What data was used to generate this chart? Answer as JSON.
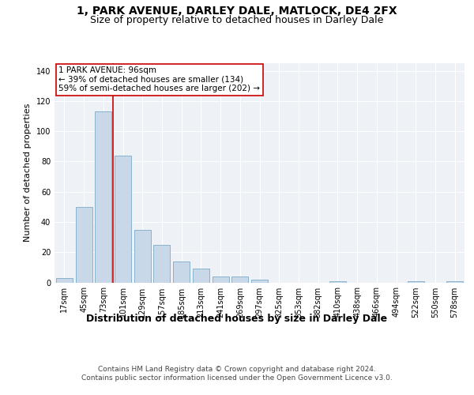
{
  "title_line1": "1, PARK AVENUE, DARLEY DALE, MATLOCK, DE4 2FX",
  "title_line2": "Size of property relative to detached houses in Darley Dale",
  "xlabel": "Distribution of detached houses by size in Darley Dale",
  "ylabel": "Number of detached properties",
  "bar_color": "#c8d8e8",
  "bar_edge_color": "#7aaac8",
  "categories": [
    "17sqm",
    "45sqm",
    "73sqm",
    "101sqm",
    "129sqm",
    "157sqm",
    "185sqm",
    "213sqm",
    "241sqm",
    "269sqm",
    "297sqm",
    "325sqm",
    "353sqm",
    "382sqm",
    "410sqm",
    "438sqm",
    "466sqm",
    "494sqm",
    "522sqm",
    "550sqm",
    "578sqm"
  ],
  "values": [
    3,
    50,
    113,
    84,
    35,
    25,
    14,
    9,
    4,
    4,
    2,
    0,
    0,
    0,
    1,
    0,
    0,
    0,
    1,
    0,
    1
  ],
  "ylim": [
    0,
    145
  ],
  "yticks": [
    0,
    20,
    40,
    60,
    80,
    100,
    120,
    140
  ],
  "annotation_text": "1 PARK AVENUE: 96sqm\n← 39% of detached houses are smaller (134)\n59% of semi-detached houses are larger (202) →",
  "annotation_box_color": "#ffffff",
  "annotation_box_edge": "#cc0000",
  "vline_color": "#cc0000",
  "footer_line1": "Contains HM Land Registry data © Crown copyright and database right 2024.",
  "footer_line2": "Contains public sector information licensed under the Open Government Licence v3.0.",
  "background_color": "#eef2f7",
  "grid_color": "#ffffff",
  "title_fontsize": 10,
  "subtitle_fontsize": 9,
  "xlabel_fontsize": 9,
  "ylabel_fontsize": 8,
  "tick_fontsize": 7,
  "annotation_fontsize": 7.5,
  "footer_fontsize": 6.5
}
